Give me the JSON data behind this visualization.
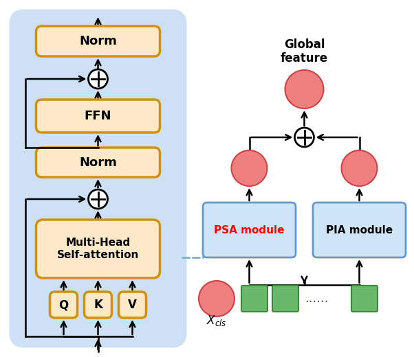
{
  "bg_color": "#ffffff",
  "left_panel_bg": "#cde0f5",
  "box_fill": "#fde8c8",
  "box_edge": "#d4900a",
  "psa_fill": "#d0e4f7",
  "psa_edge": "#6699cc",
  "pia_fill": "#d0e4f7",
  "pia_edge": "#6699cc",
  "circle_fill": "#f08080",
  "circle_edge": "#cc4444",
  "green_fill": "#6ab86a",
  "green_edge": "#3a8a3a",
  "norm_label": "Norm",
  "ffn_label": "FFN",
  "mhsa_label": "Multi-Head\nSelf-attention",
  "q_label": "Q",
  "k_label": "K",
  "v_label": "V",
  "psa_label": "PSA module",
  "pia_label": "PIA module",
  "global_label": "Global\nfeature",
  "xcls_label": "$X_{cls}$",
  "dashed_color": "#7ab0d4"
}
